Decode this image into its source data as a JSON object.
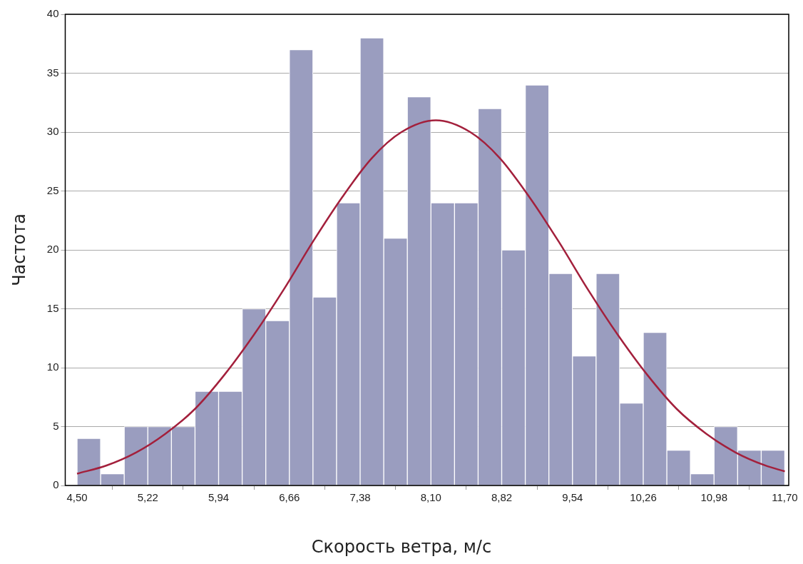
{
  "chart_data": {
    "type": "histogram",
    "xlabel": "Скорость ветра, м/с",
    "ylabel": "Частота",
    "bins": [
      4.5,
      4.74,
      4.98,
      5.22,
      5.46,
      5.7,
      5.94,
      6.18,
      6.42,
      6.66,
      6.9,
      7.14,
      7.38,
      7.62,
      7.86,
      8.1,
      8.34,
      8.58,
      8.82,
      9.06,
      9.3,
      9.54,
      9.78,
      10.02,
      10.26,
      10.5,
      10.74,
      10.98,
      11.22,
      11.46,
      11.7
    ],
    "values": [
      4,
      1,
      5,
      5,
      5,
      8,
      8,
      15,
      14,
      37,
      16,
      24,
      38,
      21,
      33,
      24,
      24,
      32,
      20,
      34,
      18,
      11,
      18,
      7,
      13,
      3,
      1,
      5,
      3,
      3
    ],
    "color": "#9a9dbf",
    "series": [
      {
        "type": "line",
        "color": "#a3203c",
        "x": [
          4.5,
          4.8,
          5.1,
          5.4,
          5.7,
          6.0,
          6.3,
          6.6,
          6.9,
          7.2,
          7.5,
          7.8,
          8.15,
          8.5,
          8.8,
          9.1,
          9.4,
          9.7,
          10.0,
          10.3,
          10.6,
          10.9,
          11.2,
          11.5,
          11.7
        ],
        "values": [
          1,
          1.7,
          2.8,
          4.4,
          6.5,
          9.4,
          12.8,
          16.6,
          20.7,
          24.5,
          27.8,
          30,
          31,
          30,
          27.8,
          24.5,
          20.7,
          16.6,
          12.8,
          9.4,
          6.5,
          4.4,
          2.8,
          1.7,
          1.2
        ]
      }
    ],
    "xlim": [
      4.38,
      11.74
    ],
    "ylim": [
      0,
      40
    ],
    "xticks": [
      {
        "value": 4.5,
        "label": "4,50"
      },
      {
        "value": 5.22,
        "label": "5,22"
      },
      {
        "value": 5.94,
        "label": "5,94"
      },
      {
        "value": 6.66,
        "label": "6,66"
      },
      {
        "value": 7.38,
        "label": "7,38"
      },
      {
        "value": 8.1,
        "label": "8,10"
      },
      {
        "value": 8.82,
        "label": "8,82"
      },
      {
        "value": 9.54,
        "label": "9,54"
      },
      {
        "value": 10.26,
        "label": "10,26"
      },
      {
        "value": 10.98,
        "label": "10,98"
      },
      {
        "value": 11.7,
        "label": "11,70"
      }
    ],
    "yticks": [
      0,
      5,
      10,
      15,
      20,
      25,
      30,
      35,
      40
    ],
    "grid": "y",
    "legend": false,
    "marker": "none",
    "line_style": "solid"
  }
}
